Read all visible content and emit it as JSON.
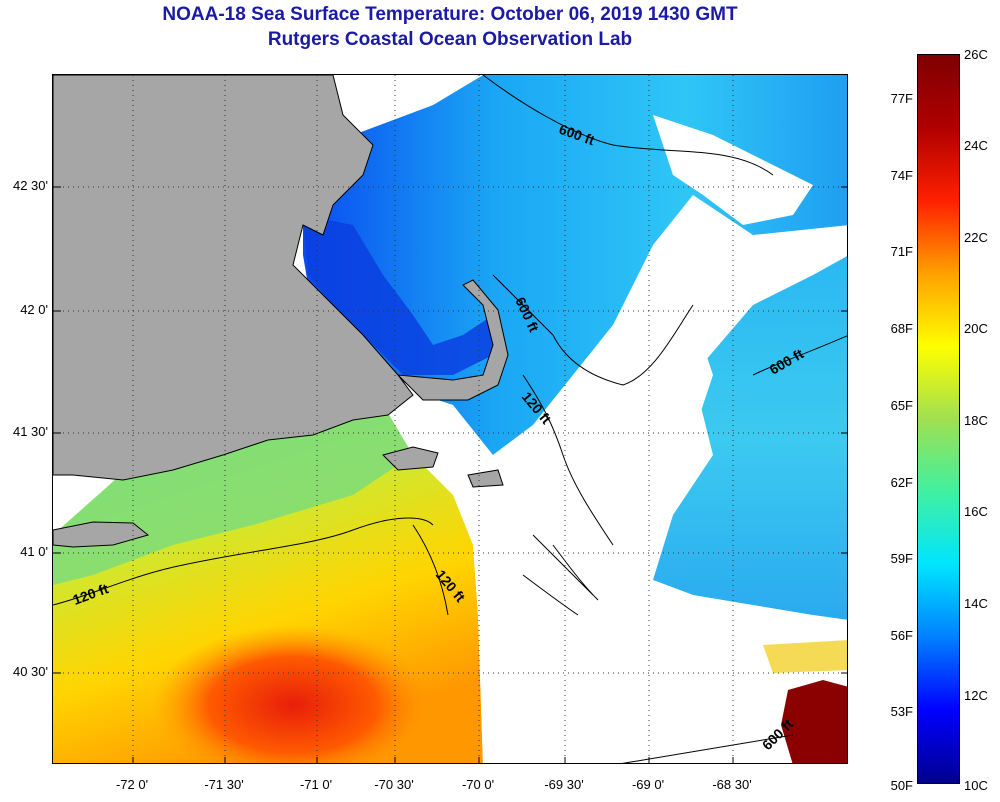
{
  "title": {
    "line1": "NOAA-18 Sea Surface Temperature:  October 06, 2019 1430 GMT",
    "line2": "Rutgers Coastal Ocean Observation Lab"
  },
  "map": {
    "latitude_labels": [
      "42 30'",
      "42 0'",
      "41 30'",
      "41 0'",
      "40 30'"
    ],
    "longitude_labels": [
      "-72 0'",
      "-71 30'",
      "-71 0'",
      "-70 30'",
      "-70 0'",
      "-69 30'",
      "-69 0'",
      "-68 30'"
    ],
    "contour_labels": [
      "600 ft",
      "600 ft",
      "600 ft",
      "600 ft",
      "120 ft",
      "120 ft",
      "120 ft"
    ],
    "colors": {
      "land": "#a6a6a6",
      "cloud": "#ffffff",
      "coastline": "#000000"
    }
  },
  "colorbar": {
    "fahrenheit_labels": [
      "77F",
      "74F",
      "71F",
      "68F",
      "65F",
      "62F",
      "59F",
      "56F",
      "53F",
      "50F"
    ],
    "celsius_labels": [
      "26C",
      "24C",
      "22C",
      "20C",
      "18C",
      "16C",
      "14C",
      "12C",
      "10C"
    ],
    "range_celsius": [
      10,
      26
    ],
    "colors": [
      "#00008f",
      "#0000ff",
      "#0080ff",
      "#00e5ff",
      "#40f0a0",
      "#a0e050",
      "#ffff00",
      "#ffa000",
      "#ff2000",
      "#b00000",
      "#800000"
    ]
  }
}
